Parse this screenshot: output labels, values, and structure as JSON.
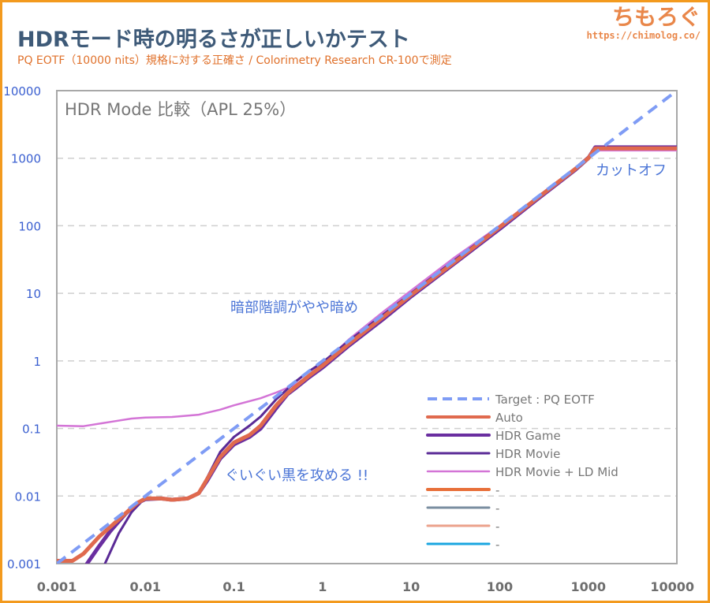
{
  "header": {
    "title": "HDRモード時の明るさが正しいかテスト",
    "subtitle": "PQ EOTF（10000 nits）規格に対する正確さ / Colorimetry Research CR-100で測定",
    "logo_text": "ちもろぐ",
    "logo_url": "https://chimolog.co/"
  },
  "colors": {
    "border": "#f39a1e",
    "title": "#3e5a78",
    "subtitle": "#e0712b",
    "annotation": "#4a74d6",
    "y_tick": "#3a5fd0",
    "x_tick": "#6e6e6e"
  },
  "chart_data": {
    "type": "line",
    "title": "HDR Mode 比較（APL 25%）",
    "xscale": "log",
    "yscale": "log",
    "xlim": [
      0.001,
      10000
    ],
    "ylim": [
      0.001,
      10000
    ],
    "x_ticks": [
      "0.001",
      "0.01",
      "0.1",
      "1",
      "10",
      "100",
      "1000",
      "10000"
    ],
    "y_ticks": [
      "0.001",
      "0.01",
      "0.1",
      "1",
      "10",
      "100",
      "1000",
      "10000"
    ],
    "grid": "horizontal-dashed",
    "legend_position": "bottom-right",
    "annotations": [
      {
        "text": "カットオフ",
        "x": 1800,
        "y": 500
      },
      {
        "text": "暗部階調がやや暗め",
        "x": 0.5,
        "y": 8
      },
      {
        "text": "ぐいぐい黒を攻める !!",
        "x": 0.2,
        "y": 0.015
      }
    ],
    "series": [
      {
        "name": "Target : PQ EOTF",
        "color": "#7f9cf5",
        "style": "dashed",
        "width": 4,
        "x": [
          0.001,
          10000
        ],
        "y": [
          0.001,
          10000
        ]
      },
      {
        "name": "Auto",
        "color": "#e06a4e",
        "style": "solid",
        "width": 5,
        "x": [
          0.001,
          0.0015,
          0.002,
          0.003,
          0.005,
          0.008,
          0.01,
          0.015,
          0.02,
          0.03,
          0.04,
          0.05,
          0.07,
          0.1,
          0.15,
          0.2,
          0.3,
          0.4,
          0.5,
          0.7,
          1,
          2,
          5,
          10,
          30,
          100,
          300,
          700,
          1000,
          1200,
          10000
        ],
        "y": [
          0.0011,
          0.0011,
          0.0014,
          0.0025,
          0.0045,
          0.0078,
          0.0092,
          0.0092,
          0.0088,
          0.0092,
          0.011,
          0.018,
          0.038,
          0.062,
          0.08,
          0.11,
          0.22,
          0.33,
          0.42,
          0.6,
          0.85,
          1.8,
          4.6,
          9.5,
          28,
          95,
          290,
          680,
          1000,
          1400,
          1400
        ]
      },
      {
        "name": "HDR Game",
        "color": "#6a2ea0",
        "style": "solid",
        "width": 5,
        "x": [
          0.0022,
          0.003,
          0.004,
          0.006,
          0.008,
          0.01,
          0.015,
          0.02,
          0.03,
          0.04,
          0.05,
          0.07,
          0.1,
          0.15,
          0.2,
          0.3,
          0.4,
          0.5,
          0.7,
          1,
          2,
          5,
          10,
          30,
          100,
          300,
          700,
          1000,
          1200,
          10000
        ],
        "y": [
          0.001,
          0.0018,
          0.003,
          0.0055,
          0.0078,
          0.009,
          0.0092,
          0.0088,
          0.0092,
          0.011,
          0.017,
          0.036,
          0.058,
          0.075,
          0.1,
          0.2,
          0.32,
          0.4,
          0.57,
          0.8,
          1.7,
          4.3,
          9,
          27,
          90,
          280,
          660,
          1000,
          1450,
          1450
        ]
      },
      {
        "name": "HDR Movie",
        "color": "#5a2a96",
        "style": "solid",
        "width": 3,
        "x": [
          0.0035,
          0.005,
          0.007,
          0.009,
          0.01,
          0.015,
          0.02,
          0.03,
          0.04,
          0.05,
          0.07,
          0.1,
          0.15,
          0.2,
          0.3,
          0.5,
          0.7,
          1,
          2,
          5,
          10,
          30,
          100,
          300,
          700,
          1000,
          1200,
          10000
        ],
        "y": [
          0.001,
          0.0028,
          0.0058,
          0.0082,
          0.009,
          0.0092,
          0.0088,
          0.0092,
          0.011,
          0.019,
          0.045,
          0.075,
          0.11,
          0.15,
          0.27,
          0.5,
          0.7,
          0.95,
          2,
          5,
          10,
          30,
          98,
          300,
          700,
          1050,
          1450,
          1450
        ]
      },
      {
        "name": "HDR Movie + LD Mid",
        "color": "#d374d6",
        "style": "solid",
        "width": 2.5,
        "x": [
          0.001,
          0.002,
          0.004,
          0.007,
          0.01,
          0.02,
          0.04,
          0.07,
          0.1,
          0.2,
          0.3,
          0.5,
          0.7,
          1,
          2,
          5,
          10,
          30,
          100,
          300,
          700,
          1000,
          1200,
          10000
        ],
        "y": [
          0.11,
          0.108,
          0.125,
          0.14,
          0.145,
          0.148,
          0.16,
          0.19,
          0.22,
          0.28,
          0.34,
          0.45,
          0.62,
          0.9,
          2.1,
          5.5,
          11,
          33,
          100,
          300,
          680,
          950,
          1300,
          1300
        ]
      },
      {
        "name": "-",
        "color": "#e8703a",
        "style": "solid",
        "width": 4,
        "x": [],
        "y": []
      },
      {
        "name": "-",
        "color": "#7a8ea0",
        "style": "solid",
        "width": 3,
        "x": [],
        "y": []
      },
      {
        "name": "-",
        "color": "#eba28c",
        "style": "solid",
        "width": 3,
        "x": [],
        "y": []
      },
      {
        "name": "-",
        "color": "#1aa6e0",
        "style": "solid",
        "width": 3,
        "x": [],
        "y": []
      }
    ]
  }
}
